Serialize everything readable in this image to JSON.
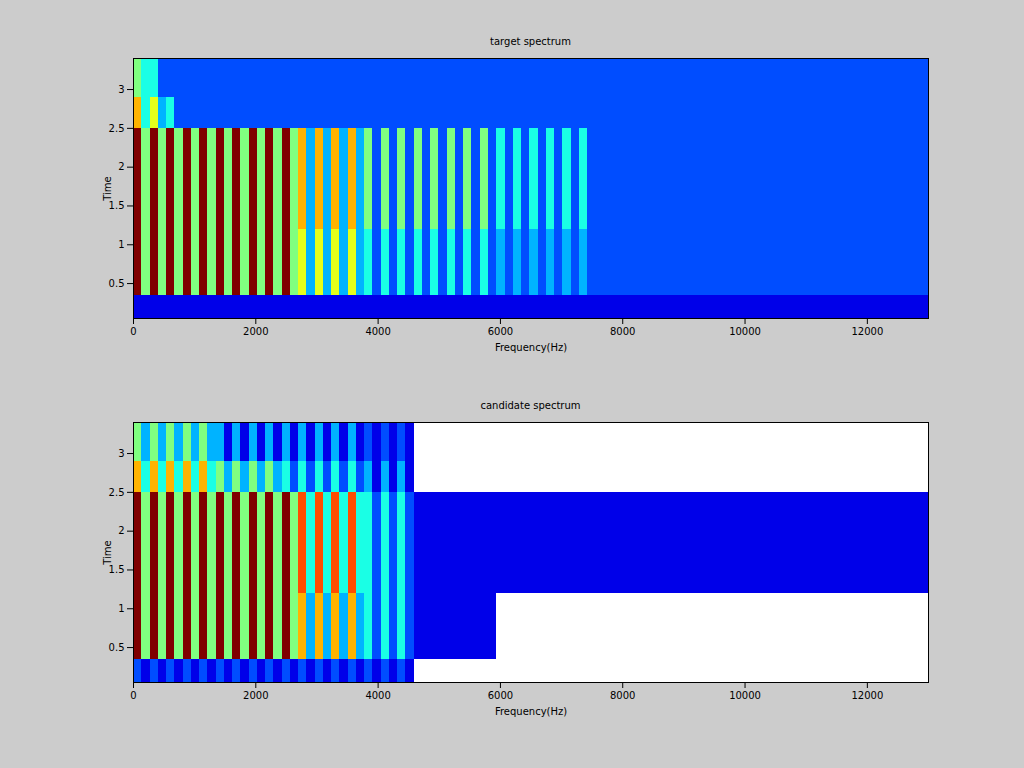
{
  "chart_data": [
    {
      "type": "heatmap",
      "title": "target spectrum",
      "x_label": "Frequency(Hz)",
      "y_label": "Time",
      "xlim": [
        0,
        13000
      ],
      "ylim": [
        0.05,
        3.4
      ],
      "xticks": [
        0,
        2000,
        4000,
        6000,
        8000,
        10000,
        12000
      ],
      "yticks": [
        0.5,
        1,
        1.5,
        2,
        2.5,
        3
      ],
      "zlim": [
        0,
        10
      ],
      "freq_edges": [
        0,
        135,
        270,
        405,
        540,
        675,
        810,
        945,
        1080,
        1215,
        1350,
        1485,
        1620,
        1755,
        1890,
        2025,
        2160,
        2295,
        2430,
        2565,
        2700,
        2835,
        2970,
        3105,
        3240,
        3375,
        3510,
        3645,
        3780,
        3915,
        4050,
        4185,
        4320,
        4455,
        4590,
        4725,
        4860,
        4995,
        5130,
        5265,
        5400,
        5535,
        5670,
        5805,
        5940,
        6075,
        6210,
        6345,
        6480,
        6615,
        6750,
        6885,
        7020,
        7155,
        7290,
        7425,
        8500,
        9500,
        10500,
        11500,
        12500,
        13000
      ],
      "time_edges": [
        0.05,
        0.35,
        1.2,
        2.5,
        2.9,
        3.4
      ],
      "cells": [
        [
          1,
          1,
          1,
          1,
          1,
          1,
          1,
          1,
          1,
          1,
          1,
          1,
          1,
          1,
          1,
          1,
          1,
          1,
          1,
          1,
          1,
          1,
          1,
          1,
          1,
          1,
          1,
          1,
          1,
          1,
          1,
          1,
          1,
          1,
          1,
          1,
          1,
          1,
          1,
          1,
          1,
          1,
          1,
          1,
          1,
          1,
          1,
          1,
          1,
          1,
          1,
          1,
          1,
          1,
          1,
          1,
          1,
          1,
          1,
          1,
          1
        ],
        [
          10,
          5,
          10,
          5,
          10,
          5,
          10,
          5,
          10,
          5,
          10,
          5,
          10,
          5,
          10,
          5,
          10,
          5,
          10,
          5,
          6,
          3,
          6,
          3,
          6,
          3,
          6,
          3,
          4,
          2,
          4,
          2,
          4,
          2,
          4,
          2,
          4,
          2,
          4,
          2,
          4,
          2,
          4,
          2,
          3,
          2,
          3,
          2,
          3,
          2,
          3,
          2,
          3,
          2,
          3,
          2,
          2,
          2,
          2,
          2,
          2
        ],
        [
          10,
          5,
          10,
          5,
          10,
          5,
          10,
          5,
          10,
          5,
          10,
          5,
          10,
          5,
          10,
          5,
          10,
          5,
          10,
          5,
          7,
          3,
          7,
          3,
          7,
          3,
          7,
          3,
          5,
          2,
          5,
          2,
          5,
          2,
          5,
          2,
          5,
          2,
          5,
          2,
          5,
          2,
          5,
          2,
          4,
          2,
          4,
          2,
          4,
          2,
          4,
          2,
          4,
          2,
          4,
          2,
          2,
          2,
          2,
          2,
          2
        ],
        [
          7,
          4,
          6,
          3,
          4,
          2,
          2,
          2,
          2,
          2,
          2,
          2,
          2,
          2,
          2,
          2,
          2,
          2,
          2,
          2,
          2,
          2,
          2,
          2,
          2,
          2,
          2,
          2,
          2,
          2,
          2,
          2,
          2,
          2,
          2,
          2,
          2,
          2,
          2,
          2,
          2,
          2,
          2,
          2,
          2,
          2,
          2,
          2,
          2,
          2,
          2,
          2,
          2,
          2,
          2,
          2,
          2,
          2,
          2,
          2,
          2
        ],
        [
          5,
          4,
          4,
          2,
          2,
          2,
          2,
          2,
          2,
          2,
          2,
          2,
          2,
          2,
          2,
          2,
          2,
          2,
          2,
          2,
          2,
          2,
          2,
          2,
          2,
          2,
          2,
          2,
          2,
          2,
          2,
          2,
          2,
          2,
          2,
          2,
          2,
          2,
          2,
          2,
          2,
          2,
          2,
          2,
          2,
          2,
          2,
          2,
          2,
          2,
          2,
          2,
          2,
          2,
          2,
          2,
          2,
          2,
          2,
          2,
          2
        ]
      ]
    },
    {
      "type": "heatmap",
      "title": "candidate spectrum",
      "x_label": "Frequency(Hz)",
      "y_label": "Time",
      "xlim": [
        0,
        13000
      ],
      "ylim": [
        0.05,
        3.4
      ],
      "xticks": [
        0,
        2000,
        4000,
        6000,
        8000,
        10000,
        12000
      ],
      "yticks": [
        0.5,
        1,
        1.5,
        2,
        2.5,
        3
      ],
      "zlim": [
        0,
        10
      ],
      "freq_edges": [
        0,
        135,
        270,
        405,
        540,
        675,
        810,
        945,
        1080,
        1215,
        1350,
        1485,
        1620,
        1755,
        1890,
        2025,
        2160,
        2295,
        2430,
        2565,
        2700,
        2835,
        2970,
        3105,
        3240,
        3375,
        3510,
        3645,
        3780,
        3915,
        4050,
        4185,
        4320,
        4455,
        4590,
        4725,
        4860,
        4995,
        5130,
        5265,
        5400,
        5535,
        5670,
        5805,
        5940,
        6075,
        6210,
        6345,
        6480,
        6615,
        6750,
        6885,
        7020,
        7155,
        7290,
        7425,
        8500,
        9500,
        10500,
        11500,
        12500,
        13000
      ],
      "time_edges": [
        0.05,
        0.35,
        1.2,
        2.5,
        2.9,
        3.4
      ],
      "cells": [
        [
          2,
          1,
          2,
          1,
          2,
          1,
          2,
          1,
          2,
          1,
          2,
          1,
          2,
          1,
          2,
          1,
          2,
          1,
          2,
          1,
          2,
          1,
          2,
          1,
          2,
          1,
          2,
          1,
          2,
          1,
          2,
          1,
          2,
          1,
          null,
          null,
          null,
          null,
          null,
          null,
          null,
          null,
          null,
          null,
          null,
          null,
          null,
          null,
          null,
          null,
          null,
          null,
          null,
          null,
          null,
          null,
          null,
          null,
          null,
          null,
          null
        ],
        [
          10,
          5,
          10,
          5,
          10,
          5,
          10,
          5,
          10,
          5,
          10,
          5,
          10,
          5,
          10,
          5,
          10,
          5,
          10,
          5,
          7,
          3,
          7,
          3,
          7,
          3,
          7,
          3,
          4,
          2,
          4,
          2,
          4,
          2,
          1,
          1,
          1,
          1,
          1,
          1,
          1,
          1,
          1,
          1,
          null,
          null,
          null,
          null,
          null,
          null,
          null,
          null,
          null,
          null,
          null,
          null,
          null,
          null,
          null,
          null,
          null
        ],
        [
          10,
          5,
          10,
          5,
          10,
          5,
          10,
          5,
          10,
          5,
          10,
          5,
          10,
          5,
          10,
          5,
          10,
          5,
          10,
          5,
          8,
          4,
          8,
          4,
          8,
          4,
          8,
          4,
          4,
          2,
          4,
          2,
          4,
          2,
          1,
          1,
          1,
          1,
          1,
          1,
          1,
          1,
          1,
          1,
          1,
          1,
          1,
          1,
          1,
          1,
          1,
          1,
          1,
          1,
          1,
          1,
          1,
          1,
          1,
          1,
          1
        ],
        [
          7,
          4,
          7,
          4,
          7,
          4,
          7,
          4,
          7,
          4,
          5,
          3,
          5,
          3,
          5,
          3,
          5,
          3,
          4,
          2,
          4,
          2,
          4,
          2,
          4,
          2,
          4,
          2,
          3,
          1,
          3,
          1,
          3,
          1,
          null,
          null,
          null,
          null,
          null,
          null,
          null,
          null,
          null,
          null,
          null,
          null,
          null,
          null,
          null,
          null,
          null,
          null,
          null,
          null,
          null,
          null,
          null,
          null,
          null,
          null,
          null
        ],
        [
          5,
          3,
          5,
          3,
          5,
          3,
          5,
          3,
          5,
          3,
          3,
          1,
          3,
          1,
          3,
          1,
          3,
          1,
          3,
          1,
          3,
          1,
          3,
          1,
          3,
          1,
          3,
          1,
          2,
          1,
          2,
          1,
          2,
          1,
          null,
          null,
          null,
          null,
          null,
          null,
          null,
          null,
          null,
          null,
          null,
          null,
          null,
          null,
          null,
          null,
          null,
          null,
          null,
          null,
          null,
          null,
          null,
          null,
          null,
          null,
          null
        ]
      ]
    }
  ]
}
